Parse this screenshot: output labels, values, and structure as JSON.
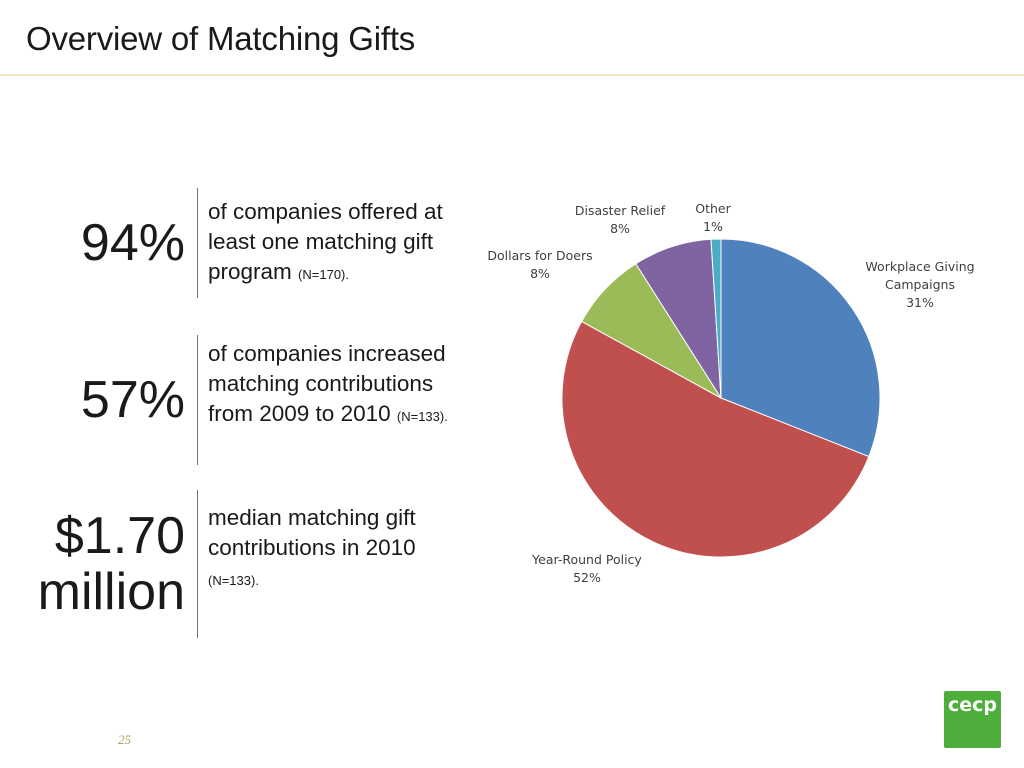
{
  "slide": {
    "title": "Overview of Matching Gifts",
    "page_number": "25",
    "logo_text": "cecp"
  },
  "stats": [
    {
      "value": "94%",
      "value_line2": "",
      "desc": "of companies offered at least one matching gift program ",
      "note": "(N=170)."
    },
    {
      "value": "57%",
      "value_line2": "",
      "desc": "of companies increased matching contributions from 2009 to 2010 ",
      "note": "(N=133)."
    },
    {
      "value": "$1.70",
      "value_line2": "million",
      "desc": "median matching gift contributions  in 2010 ",
      "note": "(N=133)."
    }
  ],
  "chart_data": {
    "type": "pie",
    "title": "",
    "start_angle_deg": 0,
    "direction": "clockwise",
    "slices": [
      {
        "label": "Workplace Giving Campaigns",
        "label_lines": [
          "Workplace Giving",
          "Campaigns",
          "31%"
        ],
        "value": 31,
        "color": "#4f81bd"
      },
      {
        "label": "Year-Round Policy",
        "label_lines": [
          "Year-Round Policy",
          "52%"
        ],
        "value": 52,
        "color": "#c0504d"
      },
      {
        "label": "Dollars for Doers",
        "label_lines": [
          "Dollars for Doers",
          "8%"
        ],
        "value": 8,
        "color": "#9bbb59"
      },
      {
        "label": "Disaster Relief",
        "label_lines": [
          "Disaster Relief",
          "8%"
        ],
        "value": 8,
        "color": "#8064a2"
      },
      {
        "label": "Other",
        "label_lines": [
          "Other",
          "1%"
        ],
        "value": 1,
        "color": "#4bacc6"
      }
    ]
  },
  "colors": {
    "logo_green": "#4dae3b",
    "title_rule": "#efe7bf"
  }
}
